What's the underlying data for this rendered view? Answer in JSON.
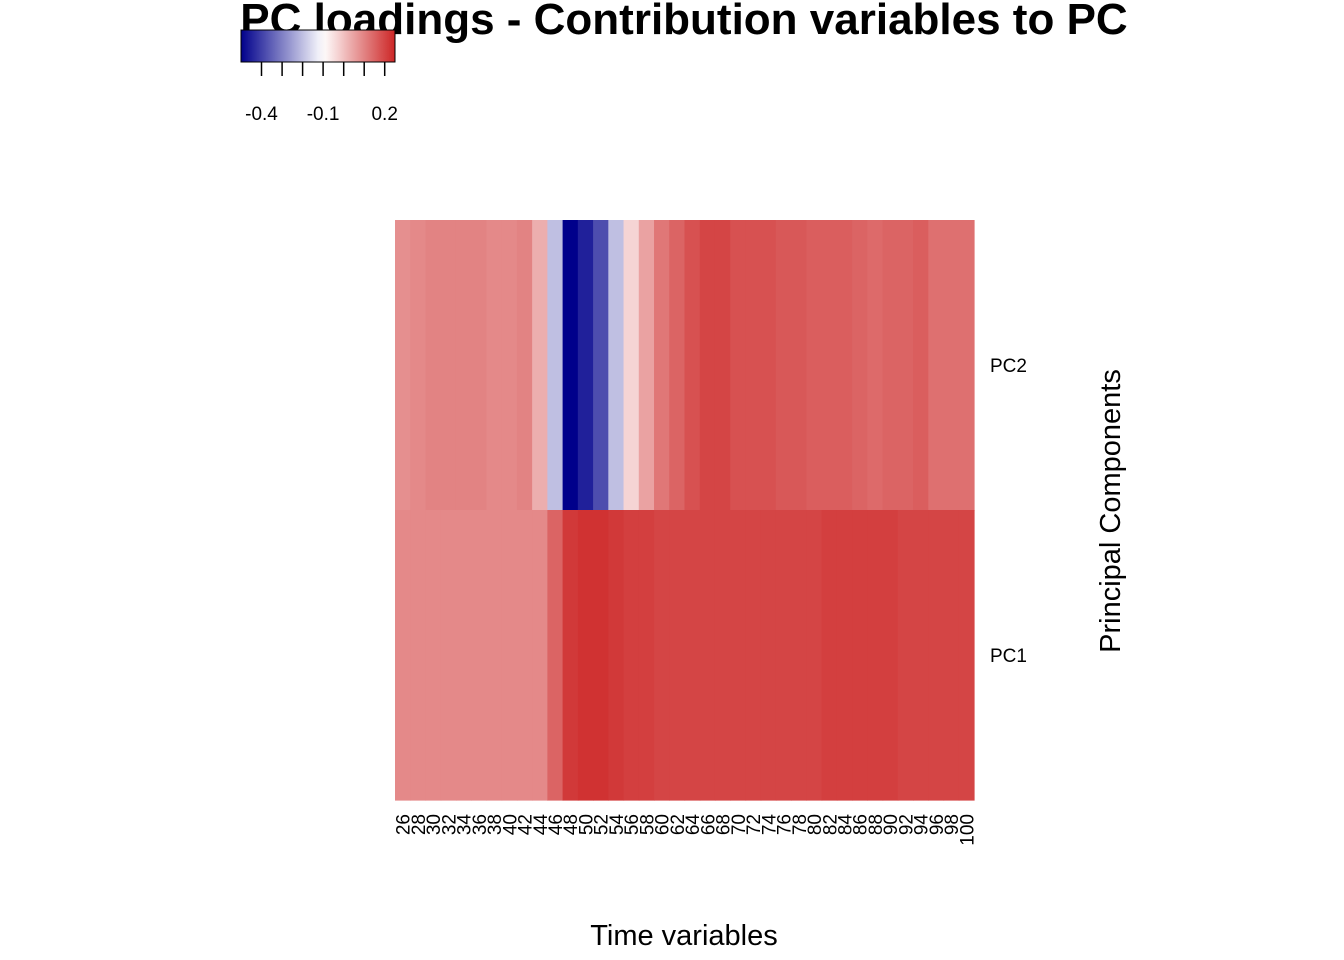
{
  "chart_data": {
    "type": "heatmap",
    "title": "PC loadings - Contribution variables to PC",
    "xlabel": "Time variables",
    "ylabel": "Principal Components",
    "x": [
      26,
      28,
      30,
      32,
      34,
      36,
      38,
      40,
      42,
      44,
      46,
      48,
      50,
      52,
      54,
      56,
      58,
      60,
      62,
      64,
      66,
      68,
      70,
      72,
      74,
      76,
      78,
      80,
      82,
      84,
      86,
      88,
      90,
      92,
      94,
      96,
      98,
      100
    ],
    "rows": [
      "PC2",
      "PC1"
    ],
    "values": {
      "PC2": [
        0.08,
        0.09,
        0.1,
        0.1,
        0.1,
        0.1,
        0.09,
        0.09,
        0.1,
        0.03,
        -0.2,
        -0.5,
        -0.45,
        -0.38,
        -0.2,
        -0.03,
        0.05,
        0.12,
        0.15,
        0.18,
        0.2,
        0.2,
        0.18,
        0.18,
        0.18,
        0.17,
        0.17,
        0.16,
        0.16,
        0.16,
        0.15,
        0.14,
        0.15,
        0.15,
        0.16,
        0.13,
        0.13,
        0.13
      ],
      "PC1": [
        0.09,
        0.09,
        0.09,
        0.09,
        0.09,
        0.09,
        0.09,
        0.09,
        0.09,
        0.09,
        0.15,
        0.22,
        0.23,
        0.23,
        0.22,
        0.21,
        0.21,
        0.2,
        0.2,
        0.2,
        0.2,
        0.2,
        0.2,
        0.2,
        0.2,
        0.2,
        0.2,
        0.2,
        0.21,
        0.21,
        0.21,
        0.21,
        0.21,
        0.2,
        0.2,
        0.2,
        0.2,
        0.2
      ]
    },
    "color_scale": {
      "min": -0.5,
      "mid": -0.1,
      "max": 0.25,
      "low_color": "#00008b",
      "mid_color": "#ffffff",
      "high_color": "#cd2626"
    },
    "legend": {
      "ticks": [
        -0.4,
        -0.1,
        0.2
      ],
      "tick_labels": [
        "-0.4",
        "-0.1",
        "0.2"
      ],
      "placement": "top-left"
    },
    "grid": false
  }
}
